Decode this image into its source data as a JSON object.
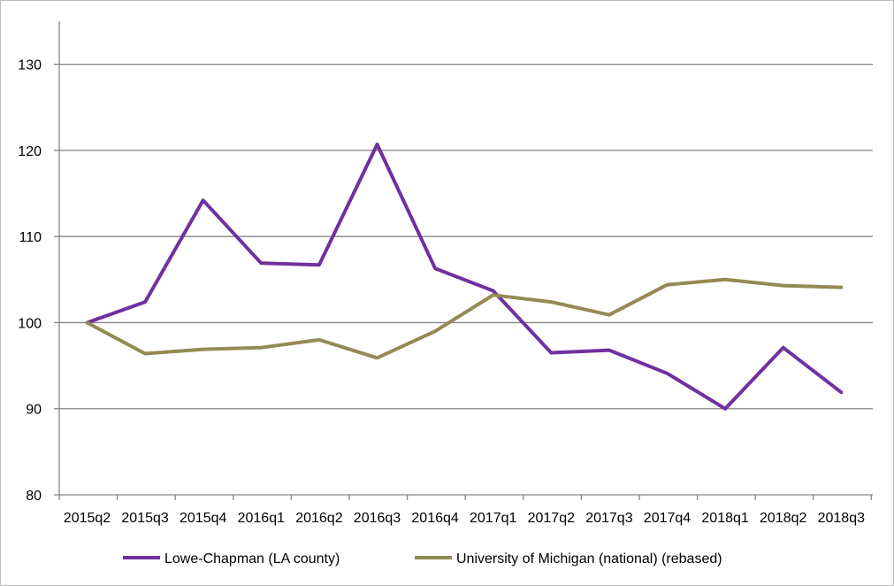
{
  "chart_data": {
    "type": "line",
    "title": "",
    "xlabel": "",
    "ylabel": "",
    "ylim": [
      80,
      135
    ],
    "yticks": [
      "80",
      "90",
      "100",
      "110",
      "120",
      "130"
    ],
    "grid": true,
    "legend_position": "bottom",
    "categories": [
      "2015q2",
      "2015q3",
      "2015q4",
      "2016q1",
      "2016q2",
      "2016q3",
      "2016q4",
      "2017q1",
      "2017q2",
      "2017q3",
      "2017q4",
      "2018q1",
      "2018q2",
      "2018q3"
    ],
    "series": [
      {
        "name": "Lowe-Chapman (LA county)",
        "color": "#7030a0",
        "values": [
          100,
          102.4,
          114.2,
          106.9,
          106.7,
          120.7,
          106.3,
          103.7,
          96.5,
          96.8,
          94.1,
          90.0,
          97.1,
          91.9
        ]
      },
      {
        "name": "University of Michigan (national) (rebased)",
        "color": "#948a54",
        "values": [
          100,
          96.4,
          96.9,
          97.1,
          98.0,
          95.9,
          99.0,
          103.2,
          102.4,
          100.9,
          104.4,
          105.0,
          104.3,
          104.1
        ]
      }
    ]
  }
}
